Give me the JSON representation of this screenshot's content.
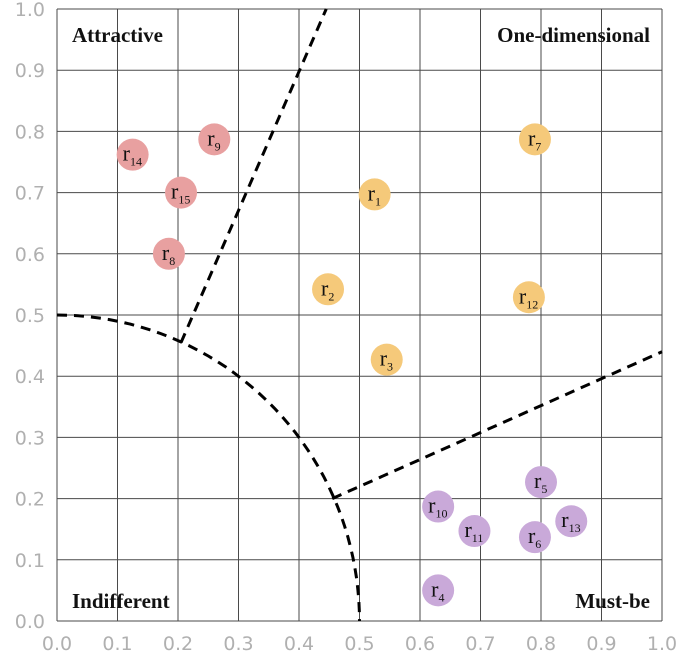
{
  "chart_data": {
    "type": "scatter",
    "title": "",
    "xlabel": "",
    "ylabel": "",
    "xlim": [
      0.0,
      1.0
    ],
    "ylim": [
      0.0,
      1.0
    ],
    "grid": true,
    "x_ticks": [
      "0.0",
      "0.1",
      "0.2",
      "0.3",
      "0.4",
      "0.5",
      "0.6",
      "0.7",
      "0.8",
      "0.9",
      "1.0"
    ],
    "y_ticks": [
      "0.0",
      "0.1",
      "0.2",
      "0.3",
      "0.4",
      "0.5",
      "0.6",
      "0.7",
      "0.8",
      "0.9",
      "1.0"
    ],
    "quadrant_labels": {
      "attractive": "Attractive",
      "one_dimensional": "One-dimensional",
      "indifferent": "Indifferent",
      "must_be": "Must-be"
    },
    "colors": {
      "Attractive": "#e8a0a0",
      "One-dimensional": "#f5c97a",
      "Must-be": "#c9a9d9"
    },
    "boundaries": {
      "arc_center": [
        0.0,
        0.0
      ],
      "arc_radius": 0.5,
      "attractive_line": [
        [
          0.205,
          0.455
        ],
        [
          0.445,
          1.0
        ]
      ],
      "must_be_line": [
        [
          0.455,
          0.2
        ],
        [
          1.0,
          0.44
        ]
      ]
    },
    "series": [
      {
        "name": "Attractive",
        "points": [
          {
            "label": "r",
            "sub": "8",
            "x": 0.185,
            "y": 0.6
          },
          {
            "label": "r",
            "sub": "9",
            "x": 0.26,
            "y": 0.787
          },
          {
            "label": "r",
            "sub": "14",
            "x": 0.125,
            "y": 0.762
          },
          {
            "label": "r",
            "sub": "15",
            "x": 0.205,
            "y": 0.7
          }
        ]
      },
      {
        "name": "One-dimensional",
        "points": [
          {
            "label": "r",
            "sub": "1",
            "x": 0.525,
            "y": 0.697
          },
          {
            "label": "r",
            "sub": "2",
            "x": 0.448,
            "y": 0.542
          },
          {
            "label": "r",
            "sub": "3",
            "x": 0.545,
            "y": 0.427
          },
          {
            "label": "r",
            "sub": "7",
            "x": 0.79,
            "y": 0.787
          },
          {
            "label": "r",
            "sub": "12",
            "x": 0.78,
            "y": 0.529
          }
        ]
      },
      {
        "name": "Must-be",
        "points": [
          {
            "label": "r",
            "sub": "4",
            "x": 0.63,
            "y": 0.05
          },
          {
            "label": "r",
            "sub": "5",
            "x": 0.8,
            "y": 0.227
          },
          {
            "label": "r",
            "sub": "6",
            "x": 0.79,
            "y": 0.137
          },
          {
            "label": "r",
            "sub": "10",
            "x": 0.63,
            "y": 0.187
          },
          {
            "label": "r",
            "sub": "11",
            "x": 0.69,
            "y": 0.147
          },
          {
            "label": "r",
            "sub": "13",
            "x": 0.85,
            "y": 0.163
          }
        ]
      }
    ]
  }
}
